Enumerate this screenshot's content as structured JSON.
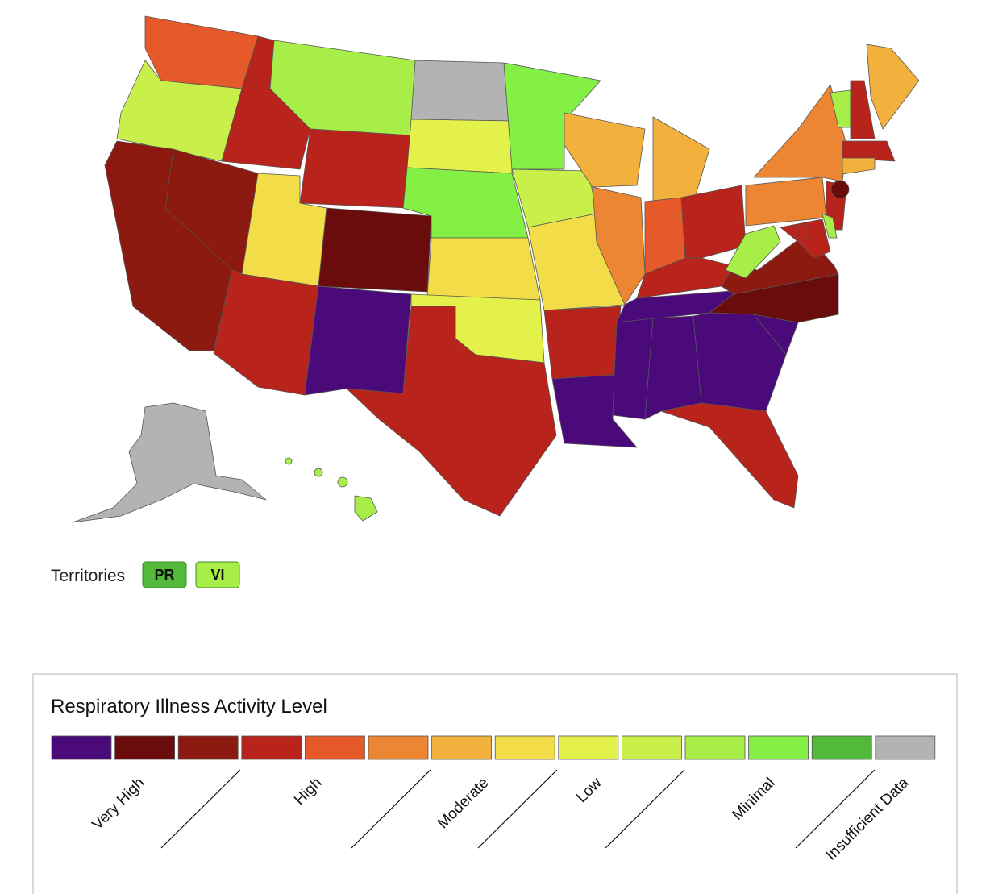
{
  "territories": {
    "label": "Territories",
    "items": [
      {
        "name": "PR",
        "color": "#52b93a"
      },
      {
        "name": "VI",
        "color": "#a7ef48"
      }
    ]
  },
  "legend": {
    "title": "Respiratory Illness Activity Level",
    "colors": [
      "#4b0a7a",
      "#6b0c0c",
      "#8c1a10",
      "#b8241c",
      "#e55a28",
      "#ec8632",
      "#f2b03c",
      "#f2dc48",
      "#e4f14a",
      "#c9f04a",
      "#a7ef48",
      "#84f045",
      "#52b93a",
      "#b3b3b3"
    ],
    "labels": [
      "Very High",
      "High",
      "Moderate",
      "Low",
      "Minimal",
      "Insufficient Data"
    ]
  }
}
